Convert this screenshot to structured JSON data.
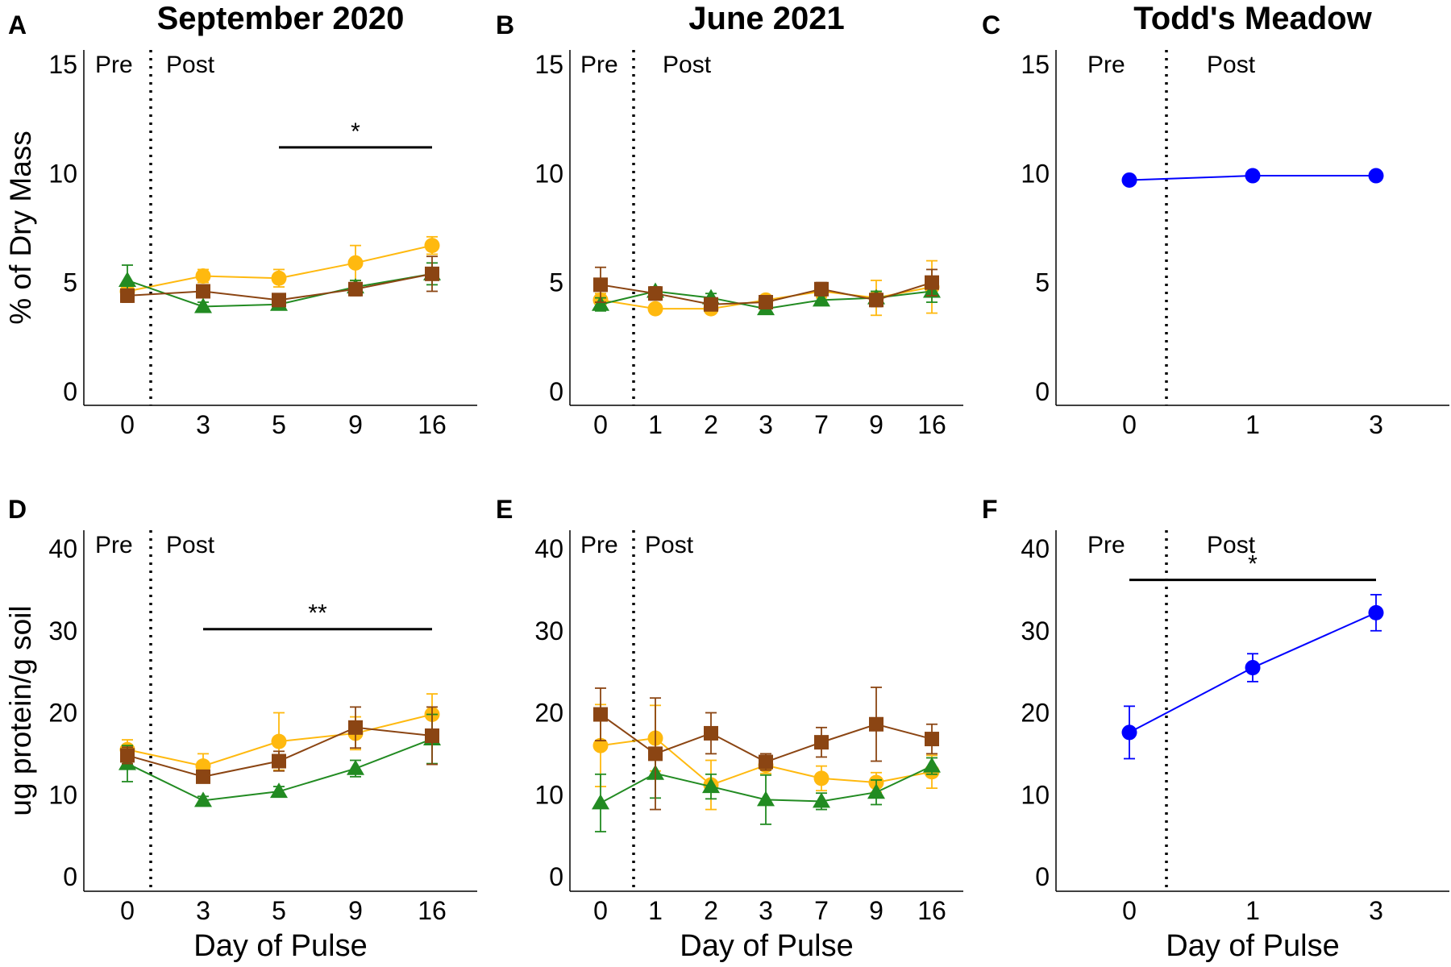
{
  "figure": {
    "colors": {
      "yellow": "#FFB90F",
      "brown": "#8B4513",
      "green": "#228B22",
      "blue": "#0000FF",
      "axis": "#000000"
    }
  },
  "chart_data": [
    {
      "panel": "A",
      "title": "September 2020",
      "type": "line",
      "ylabel": "% of Dry Mass",
      "xlabel": "",
      "categories": [
        "0",
        "3",
        "5",
        "9",
        "16"
      ],
      "ylim": [
        0,
        15
      ],
      "yticks": [
        0,
        5,
        10,
        15
      ],
      "pre_label": "Pre",
      "post_label": "Post",
      "divider_after_index": 0,
      "series": [
        {
          "color": "yellow",
          "marker": "circle",
          "values": [
            4.6,
            5.3,
            5.2,
            5.9,
            6.7
          ],
          "err": [
            0.3,
            0.3,
            0.4,
            0.8,
            0.4
          ]
        },
        {
          "color": "green",
          "marker": "triangle",
          "values": [
            5.1,
            3.9,
            4.0,
            4.8,
            5.4
          ],
          "err": [
            0.7,
            0.2,
            0.2,
            0.3,
            0.5
          ]
        },
        {
          "color": "brown",
          "marker": "square",
          "values": [
            4.4,
            4.6,
            4.2,
            4.7,
            5.4
          ],
          "err": [
            0.3,
            0.2,
            0.2,
            0.3,
            0.8
          ]
        }
      ],
      "annotations": [
        {
          "from_index": 2,
          "to_index": 4,
          "y": 11.2,
          "label": "*"
        }
      ],
      "grid": false
    },
    {
      "panel": "B",
      "title": "June 2021",
      "type": "line",
      "ylabel": "",
      "xlabel": "",
      "categories": [
        "0",
        "1",
        "2",
        "3",
        "7",
        "9",
        "16"
      ],
      "ylim": [
        0,
        15
      ],
      "yticks": [
        0,
        5,
        10,
        15
      ],
      "pre_label": "Pre",
      "post_label": "Post",
      "divider_after_index": 0,
      "series": [
        {
          "color": "yellow",
          "marker": "circle",
          "values": [
            4.2,
            3.8,
            3.8,
            4.2,
            4.6,
            4.3,
            4.8
          ],
          "err": [
            0.3,
            0.2,
            0.2,
            0.2,
            0.3,
            0.8,
            1.2
          ]
        },
        {
          "color": "green",
          "marker": "triangle",
          "values": [
            4.0,
            4.6,
            4.3,
            3.8,
            4.2,
            4.3,
            4.6
          ],
          "err": [
            0.3,
            0.2,
            0.2,
            0.2,
            0.2,
            0.3,
            0.5
          ]
        },
        {
          "color": "brown",
          "marker": "square",
          "values": [
            4.9,
            4.5,
            4.0,
            4.1,
            4.7,
            4.2,
            5.0
          ],
          "err": [
            0.8,
            0.3,
            0.2,
            0.2,
            0.3,
            0.3,
            0.6
          ]
        }
      ],
      "annotations": [],
      "grid": false
    },
    {
      "panel": "C",
      "title": "Todd's Meadow",
      "type": "line",
      "ylabel": "",
      "xlabel": "",
      "categories": [
        "0",
        "1",
        "3"
      ],
      "ylim": [
        0,
        15
      ],
      "yticks": [
        0,
        5,
        10,
        15
      ],
      "pre_label": "Pre",
      "post_label": "Post",
      "divider_after_index": 0,
      "series": [
        {
          "color": "blue",
          "marker": "circle",
          "values": [
            9.7,
            9.9,
            9.9
          ],
          "err": [
            0.1,
            0.2,
            0.2
          ]
        }
      ],
      "annotations": [],
      "grid": false
    },
    {
      "panel": "D",
      "title": "",
      "type": "line",
      "ylabel": "ug protein/g soil",
      "xlabel": "Day of Pulse",
      "categories": [
        "0",
        "3",
        "5",
        "9",
        "16"
      ],
      "ylim": [
        0,
        40
      ],
      "yticks": [
        0,
        10,
        20,
        30,
        40
      ],
      "pre_label": "Pre",
      "post_label": "Post",
      "divider_after_index": 0,
      "series": [
        {
          "color": "yellow",
          "marker": "circle",
          "values": [
            15.5,
            13.5,
            16.5,
            17.5,
            19.8
          ],
          "err": [
            1.2,
            1.5,
            3.5,
            2.0,
            2.5
          ]
        },
        {
          "color": "green",
          "marker": "triangle",
          "values": [
            13.8,
            9.3,
            10.4,
            13.2,
            16.8
          ],
          "err": [
            2.2,
            0.5,
            0.6,
            1.0,
            3.0
          ]
        },
        {
          "color": "brown",
          "marker": "square",
          "values": [
            14.8,
            12.2,
            14.1,
            18.2,
            17.2
          ],
          "err": [
            1.0,
            0.6,
            1.2,
            2.5,
            3.5
          ]
        }
      ],
      "annotations": [
        {
          "from_index": 1,
          "to_index": 4,
          "y": 30.2,
          "label": "**"
        }
      ],
      "grid": false
    },
    {
      "panel": "E",
      "title": "",
      "type": "line",
      "ylabel": "",
      "xlabel": "Day of Pulse",
      "categories": [
        "0",
        "1",
        "2",
        "3",
        "7",
        "9",
        "16"
      ],
      "ylim": [
        0,
        40
      ],
      "yticks": [
        0,
        10,
        20,
        30,
        40
      ],
      "pre_label": "Pre",
      "post_label": "Post",
      "divider_after_index": 0,
      "series": [
        {
          "color": "yellow",
          "marker": "circle",
          "values": [
            16.0,
            16.9,
            11.2,
            13.6,
            12.0,
            11.5,
            12.8
          ],
          "err": [
            5.0,
            4.0,
            3.0,
            1.0,
            1.5,
            1.2,
            2.0
          ]
        },
        {
          "color": "green",
          "marker": "triangle",
          "values": [
            9.0,
            12.6,
            11.0,
            9.4,
            9.2,
            10.3,
            13.5
          ],
          "err": [
            3.5,
            3.0,
            1.5,
            3.0,
            1.0,
            1.5,
            1.0
          ]
        },
        {
          "color": "brown",
          "marker": "square",
          "values": [
            19.8,
            15.0,
            17.5,
            14.0,
            16.4,
            18.6,
            16.8
          ],
          "err": [
            3.2,
            6.8,
            2.5,
            1.0,
            1.8,
            4.5,
            1.8
          ]
        }
      ],
      "annotations": [],
      "grid": false
    },
    {
      "panel": "F",
      "title": "",
      "type": "line",
      "ylabel": "",
      "xlabel": "Day of Pulse",
      "categories": [
        "0",
        "1",
        "3"
      ],
      "ylim": [
        0,
        40
      ],
      "yticks": [
        0,
        10,
        20,
        30,
        40
      ],
      "pre_label": "Pre",
      "post_label": "Post",
      "divider_after_index": 0,
      "series": [
        {
          "color": "blue",
          "marker": "circle",
          "values": [
            17.6,
            25.5,
            32.2
          ],
          "err": [
            3.2,
            1.7,
            2.2
          ]
        }
      ],
      "annotations": [
        {
          "from_index": 0,
          "to_index": 2,
          "y": 36.2,
          "label": "*"
        }
      ],
      "grid": false
    }
  ]
}
